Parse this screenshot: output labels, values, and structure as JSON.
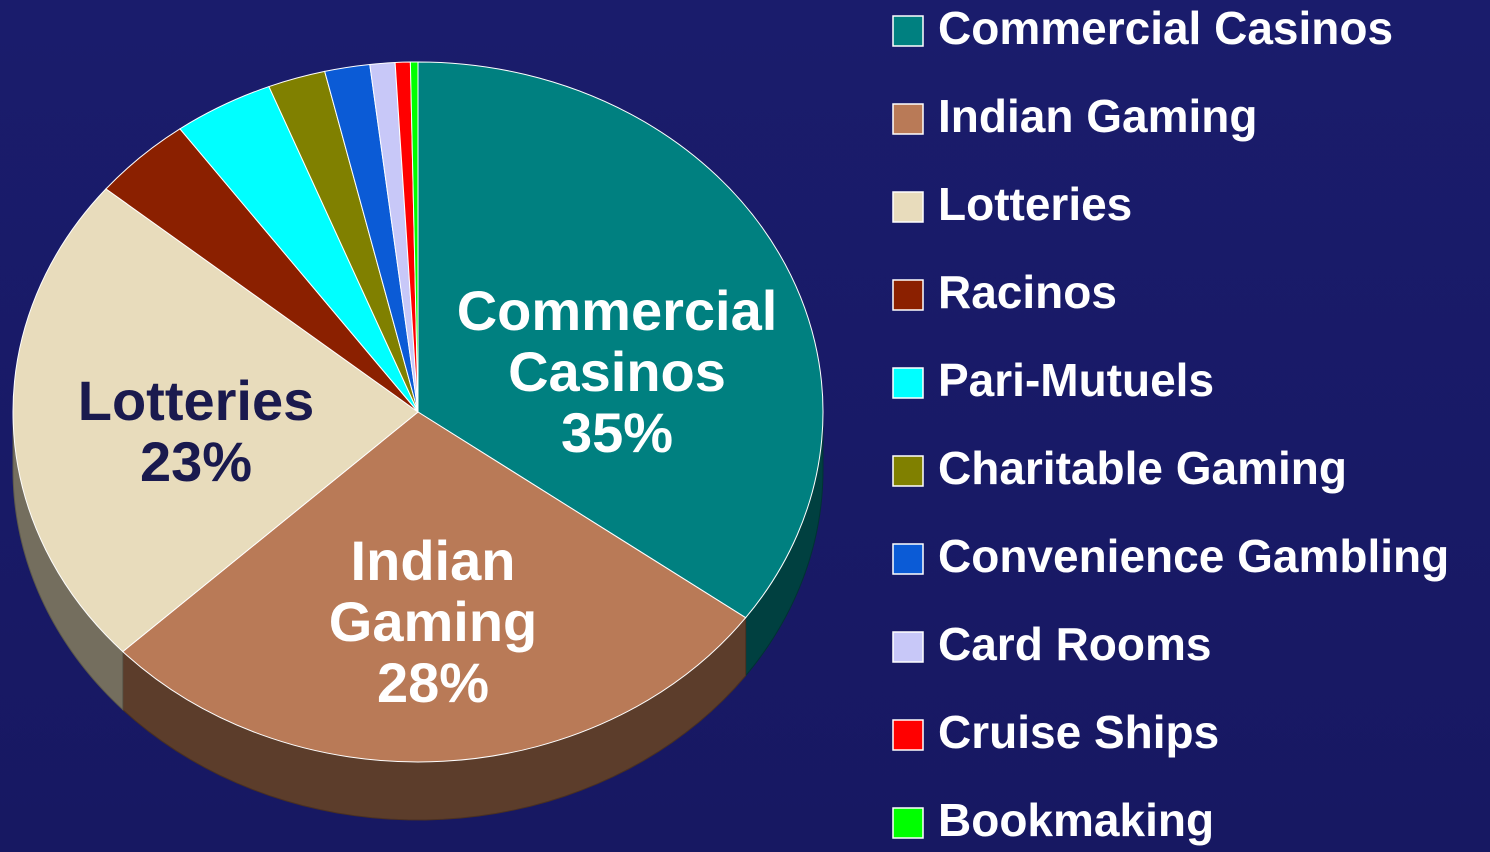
{
  "chart_data": {
    "type": "pie",
    "categories": [
      "Commercial Casinos",
      "Indian Gaming",
      "Lotteries",
      "Racinos",
      "Pari-Mutuels",
      "Charitable Gaming",
      "Convenience Gambling",
      "Card Rooms",
      "Cruise Ships",
      "Bookmaking"
    ],
    "values": [
      35,
      28,
      23,
      4,
      4,
      2.3,
      1.8,
      1,
      0.6,
      0.3
    ],
    "value_labels": [
      "35%",
      "28%",
      "23%",
      null,
      null,
      null,
      null,
      null,
      null,
      null
    ],
    "colors": [
      "#008080",
      "#b97a57",
      "#e8dcbc",
      "#8b2000",
      "#00ffff",
      "#808000",
      "#0b5bd6",
      "#c8c8f8",
      "#ff0000",
      "#00ff00"
    ],
    "legend": "right"
  }
}
